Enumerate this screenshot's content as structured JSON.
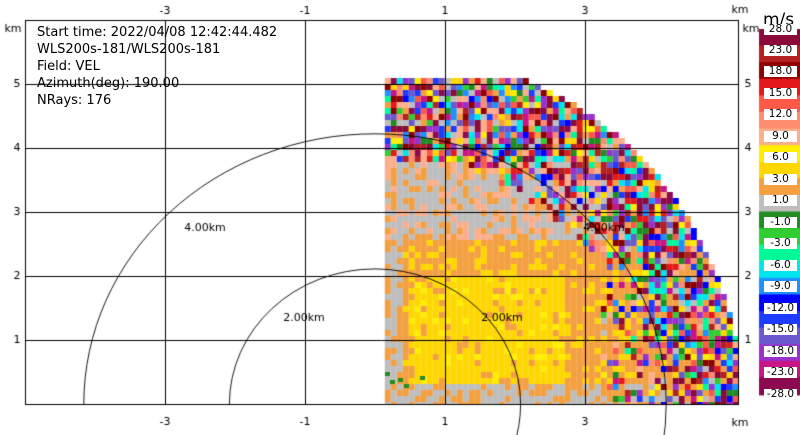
{
  "info": {
    "start_time": "Start time: 2022/04/08 12:42:44.482",
    "instrument": "WLS200s-181/WLS200s-181",
    "field": "Field: VEL",
    "azimuth": "Azimuth(deg): 190.00",
    "nrays": "NRays: 176"
  },
  "axes": {
    "x_ticks": [
      "-3",
      "-1",
      "1",
      "3"
    ],
    "x_tick_values": [
      -3,
      -1,
      1,
      3
    ],
    "y_ticks": [
      "5",
      "4",
      "3",
      "2",
      "1"
    ],
    "y_tick_values": [
      5,
      4,
      3,
      2,
      1
    ],
    "unit": "km",
    "x_range": [
      -5.0,
      4.2
    ],
    "y_range": [
      0,
      5.05
    ]
  },
  "range_rings": [
    {
      "radius_km": 2,
      "label": "2.00km"
    },
    {
      "radius_km": 4,
      "label": "4.00km"
    }
  ],
  "colorbar": {
    "unit": "m/s",
    "labels": [
      "28.0",
      "23.0",
      "18.0",
      "15.0",
      "12.0",
      "9.0",
      "6.0",
      "3.0",
      "1.0",
      "-1.0",
      "-3.0",
      "-6.0",
      "-9.0",
      "-12.0",
      "-15.0",
      "-18.0",
      "-23.0",
      "-28.0"
    ],
    "colors": [
      "#8b0a3a",
      "#b22222",
      "#8b0000",
      "#e31a1c",
      "#fb5a4a",
      "#fc8d6f",
      "#fdae8a",
      "#ffee00",
      "#ffd700",
      "#f4a040",
      "#bebebe",
      "#228b22",
      "#32cd32",
      "#00fa9a",
      "#00e5ee",
      "#1e90ff",
      "#0000ff",
      "#1e3cff",
      "#6a5acd",
      "#9932cc",
      "#c71585",
      "#8b0a50"
    ]
  }
}
